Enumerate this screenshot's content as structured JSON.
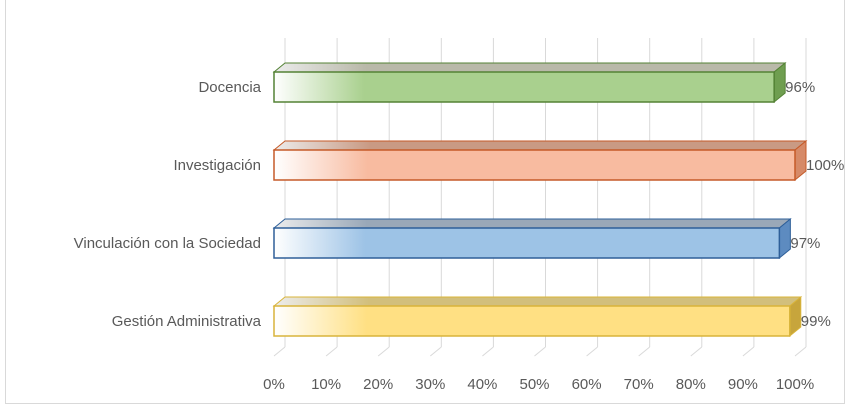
{
  "chart_data": {
    "type": "bar",
    "orientation": "horizontal",
    "style": "3d",
    "categories": [
      "Docencia",
      "Investigación",
      "Vinculación con la Sociedad",
      "Gestión Administrativa"
    ],
    "values": [
      96,
      100,
      97,
      99
    ],
    "data_labels": [
      "96%",
      "100%",
      "97%",
      "99%"
    ],
    "colors": {
      "face": [
        "#a9d08e",
        "#f8bba0",
        "#9dc3e6",
        "#ffe083"
      ],
      "border": [
        "#548235",
        "#c55a28",
        "#2e5f99",
        "#d9b43a"
      ],
      "side": [
        "#6f9e50",
        "#d68a68",
        "#5d8bc0",
        "#c7a53c"
      ],
      "top": [
        "#b9b9a9",
        "#c99a84",
        "#9aa8b8",
        "#d2bf7c"
      ]
    },
    "xlim": [
      0,
      100
    ],
    "x_ticks": [
      "0%",
      "10%",
      "20%",
      "30%",
      "40%",
      "50%",
      "60%",
      "70%",
      "80%",
      "90%",
      "100%"
    ],
    "grid": true,
    "legend": "none"
  }
}
